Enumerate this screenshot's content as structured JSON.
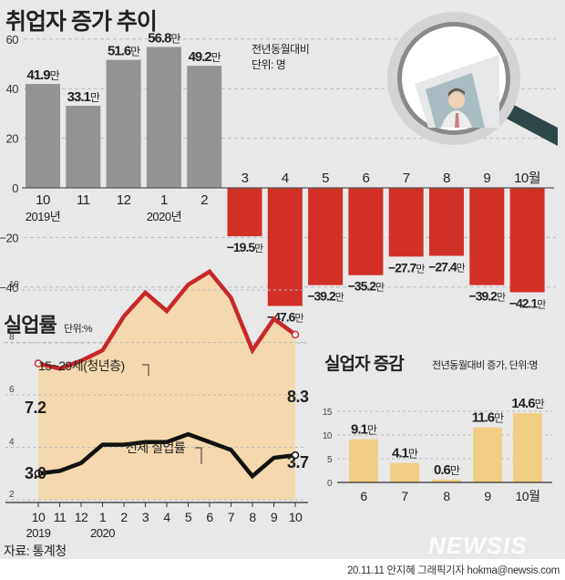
{
  "colors": {
    "background": "#e8e8e8",
    "positive_bar": "#939393",
    "negative_bar": "#d22f27",
    "youth_line": "#c8282a",
    "youth_fill": "#f3d9ad",
    "total_line": "#111111",
    "unemployed_bar": "#f2cd86",
    "grid": "#b9b9b9",
    "text": "#222222"
  },
  "chart1": {
    "title": "취업자 증가 추이",
    "note_line1": "전년동월대비",
    "note_line2": "단위: 명"
  },
  "chart2": {
    "title": "실업률",
    "unit": "단위:%",
    "youth_label": "15~29세(청년층)",
    "total_label": "전체 실업률"
  },
  "chart3": {
    "title": "실업자 증감",
    "note": "전년동월대비 증가, 단위:명"
  },
  "source": "자료: 통계청",
  "watermark": "NEWSIS",
  "credit": "20.11.11 안지혜 그래픽기자 hokma@newsis.com",
  "chart_data": [
    {
      "type": "bar",
      "title": "취업자 증가 추이",
      "subtitle": "전년동월대비, 단위: 명",
      "categories": [
        "2019-10",
        "2019-11",
        "2019-12",
        "2020-1",
        "2020-2",
        "2020-3",
        "2020-4",
        "2020-5",
        "2020-6",
        "2020-7",
        "2020-8",
        "2020-9",
        "2020-10"
      ],
      "tick_labels": [
        "10",
        "11",
        "12",
        "1",
        "2",
        "3",
        "4",
        "5",
        "6",
        "7",
        "8",
        "9",
        "10월"
      ],
      "year_labels": [
        {
          "index": 0,
          "label": "2019년"
        },
        {
          "index": 3,
          "label": "2020년"
        }
      ],
      "values": [
        41.9,
        33.1,
        51.6,
        56.8,
        49.2,
        -19.5,
        -47.6,
        -39.2,
        -35.2,
        -27.7,
        -27.4,
        -39.2,
        -42.1
      ],
      "value_labels": [
        "41.9만",
        "33.1만",
        "51.6만",
        "56.8만",
        "49.2만",
        "-19.5만",
        "-47.6만",
        "-39.2만",
        "-35.2만",
        "-27.7만",
        "-27.4만",
        "-39.2만",
        "-42.1만"
      ],
      "unit": "만 명",
      "yticks": [
        60,
        40,
        20,
        0,
        -20,
        -40
      ],
      "ylim": [
        -50,
        62
      ],
      "grid": true
    },
    {
      "type": "line",
      "title": "실업률",
      "subtitle": "단위:%",
      "x": [
        "10",
        "11",
        "12",
        "1",
        "2",
        "3",
        "4",
        "5",
        "6",
        "7",
        "8",
        "9",
        "10"
      ],
      "year_labels": [
        {
          "index": 0,
          "label": "2019"
        },
        {
          "index": 3,
          "label": "2020"
        }
      ],
      "series": [
        {
          "name": "15~29세(청년층)",
          "values": [
            7.2,
            7.0,
            7.3,
            7.7,
            9.0,
            9.9,
            9.2,
            10.2,
            10.7,
            9.7,
            7.7,
            8.9,
            8.3
          ],
          "start_label": "7.2",
          "end_label": "8.3"
        },
        {
          "name": "전체 실업률",
          "values": [
            3.0,
            3.1,
            3.4,
            4.1,
            4.1,
            4.2,
            4.2,
            4.5,
            4.2,
            3.9,
            2.9,
            3.6,
            3.7
          ],
          "start_label": "3.0",
          "end_label": "3.7"
        }
      ],
      "yticks": [
        2,
        4,
        6,
        8,
        10
      ],
      "ylim": [
        1.9,
        11.5
      ],
      "grid": true
    },
    {
      "type": "bar",
      "title": "실업자 증감",
      "subtitle": "전년동월대비 증가, 단위:명",
      "categories": [
        "6",
        "7",
        "8",
        "9",
        "10월"
      ],
      "values": [
        9.1,
        4.1,
        0.6,
        11.6,
        14.6
      ],
      "value_labels": [
        "9.1만",
        "4.1만",
        "0.6만",
        "11.6만",
        "14.6만"
      ],
      "unit": "만 명",
      "yticks": [
        0,
        5,
        10,
        15
      ],
      "ylim": [
        0,
        16
      ],
      "grid": true
    }
  ]
}
